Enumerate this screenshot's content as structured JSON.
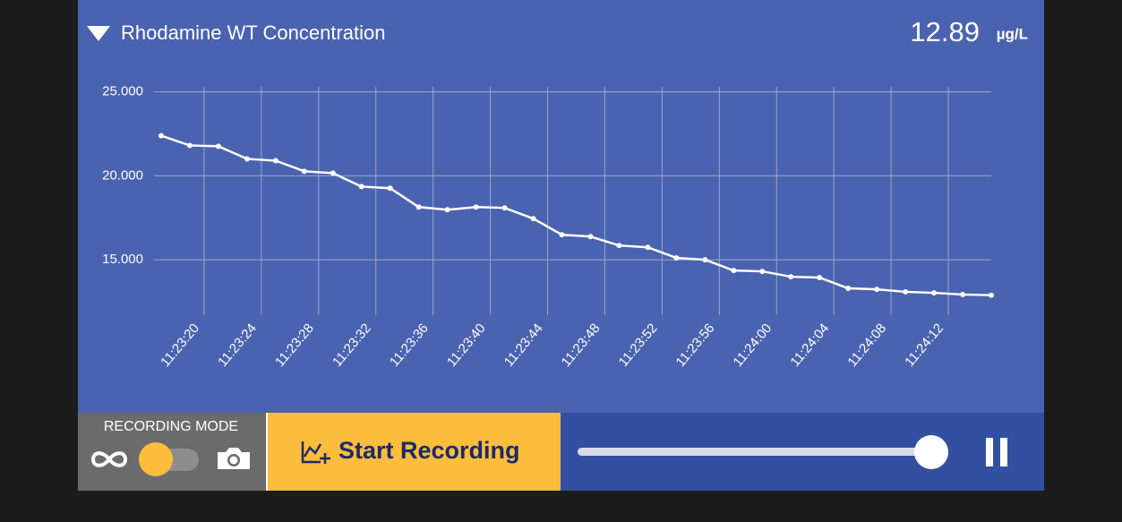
{
  "header": {
    "title": "Rhodamine WT Concentration",
    "value": "12.89",
    "unit": "µg/L"
  },
  "chart_data": {
    "type": "line",
    "color": "#ffffff",
    "grid": true,
    "x": [
      "11:23:17",
      "11:23:19",
      "11:23:21",
      "11:23:23",
      "11:23:25",
      "11:23:27",
      "11:23:29",
      "11:23:31",
      "11:23:33",
      "11:23:35",
      "11:23:37",
      "11:23:39",
      "11:23:41",
      "11:23:43",
      "11:23:45",
      "11:23:47",
      "11:23:49",
      "11:23:51",
      "11:23:53",
      "11:23:55",
      "11:23:57",
      "11:23:59",
      "11:24:01",
      "11:24:03",
      "11:24:05",
      "11:24:07",
      "11:24:09",
      "11:24:11",
      "11:24:13",
      "11:24:15"
    ],
    "values": [
      22.39,
      21.81,
      21.76,
      21.01,
      20.9,
      20.27,
      20.16,
      19.36,
      19.26,
      18.14,
      17.98,
      18.14,
      18.09,
      17.45,
      16.49,
      16.38,
      15.85,
      15.74,
      15.11,
      15.0,
      14.36,
      14.31,
      13.99,
      13.94,
      13.3,
      13.24,
      13.09,
      13.03,
      12.93,
      12.89
    ],
    "xlim": [
      "11:23:17",
      "11:24:15"
    ],
    "xticks": [
      "11:23:20",
      "11:23:24",
      "11:23:28",
      "11:23:32",
      "11:23:36",
      "11:23:40",
      "11:23:44",
      "11:23:48",
      "11:23:52",
      "11:23:56",
      "11:24:00",
      "11:24:04",
      "11:24:08",
      "11:24:12"
    ],
    "ylim": [
      11.7,
      25.3
    ],
    "yticks": [
      {
        "value": 15,
        "label": "15.000"
      },
      {
        "value": 20,
        "label": "20.000"
      },
      {
        "value": 25,
        "label": "25.000"
      }
    ]
  },
  "controls": {
    "mode_label": "RECORDING MODE",
    "button_label": "Start Recording"
  }
}
